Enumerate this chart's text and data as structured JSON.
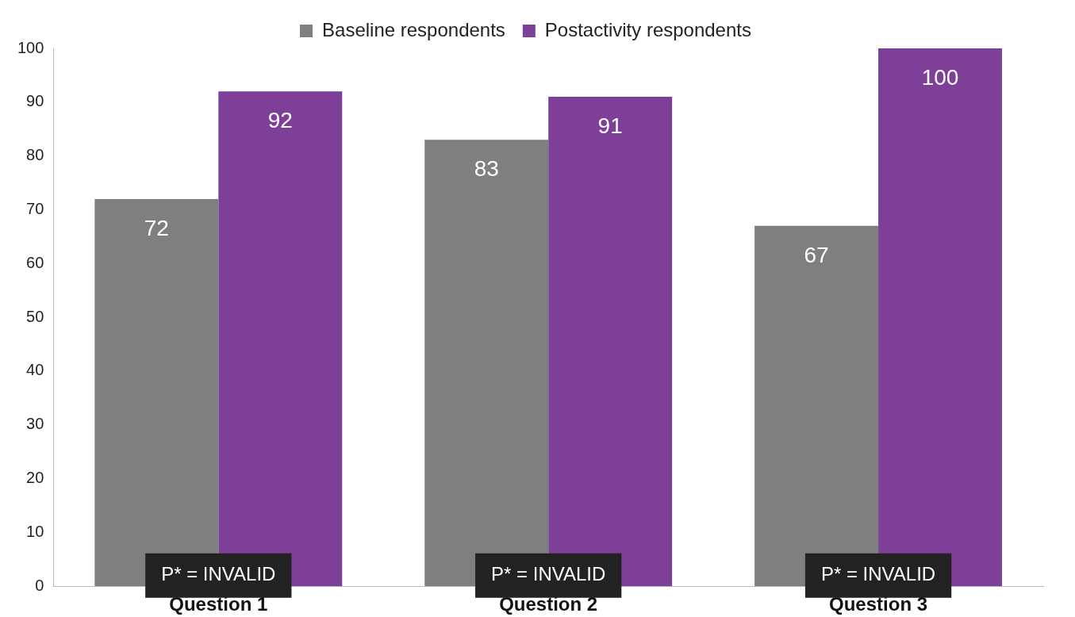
{
  "chart_data": {
    "type": "bar",
    "categories": [
      "Question 1",
      "Question 2",
      "Question 3"
    ],
    "series": [
      {
        "name": "Baseline respondents",
        "color": "#7f7f7f",
        "values": [
          72,
          83,
          67
        ]
      },
      {
        "name": "Postactivity respondents",
        "color": "#7d3f98",
        "values": [
          92,
          91,
          100
        ]
      }
    ],
    "ylim": [
      0,
      100
    ],
    "yticks": [
      0,
      10,
      20,
      30,
      40,
      50,
      60,
      70,
      80,
      90,
      100
    ],
    "grid": false,
    "legend": "top",
    "data_labels": true,
    "annotations": [
      {
        "text": "P* = INVALID",
        "x": "Question 1",
        "y": 2
      },
      {
        "text": "P* = INVALID",
        "x": "Question 2",
        "y": 2
      },
      {
        "text": "P* = INVALID",
        "x": "Question 3",
        "y": 2
      }
    ]
  }
}
